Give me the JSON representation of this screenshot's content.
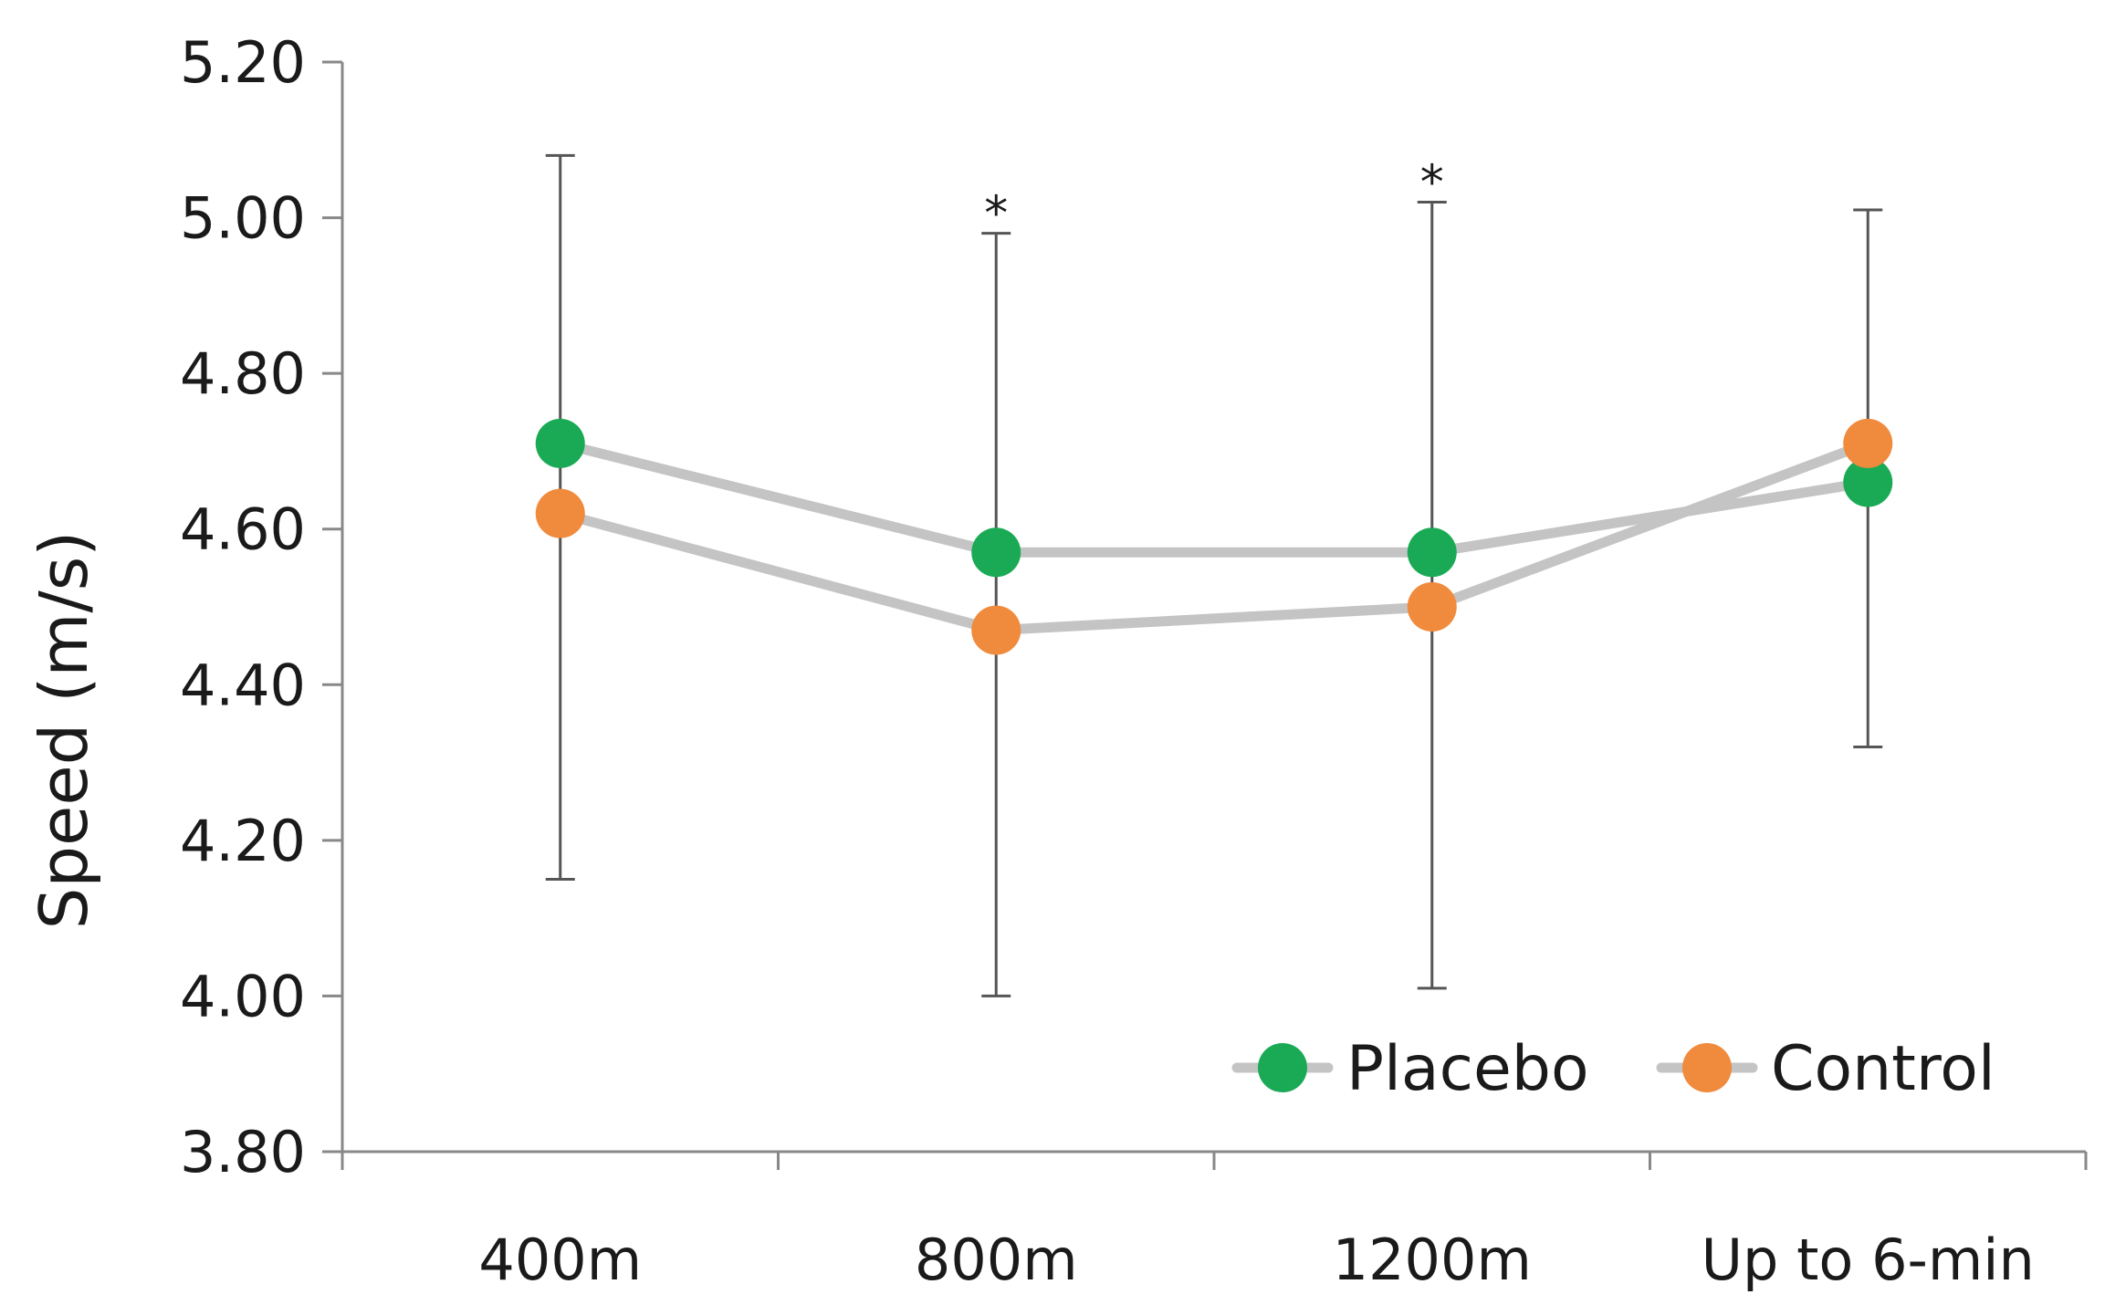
{
  "chart_data": {
    "type": "line",
    "title": "",
    "xlabel": "",
    "ylabel": "Speed (m/s)",
    "categories": [
      "400m",
      "800m",
      "1200m",
      "Up to 6-min"
    ],
    "y_ticks": [
      "3.80",
      "4.00",
      "4.20",
      "4.40",
      "4.60",
      "4.80",
      "5.00",
      "5.20"
    ],
    "ylim": [
      3.8,
      5.2
    ],
    "grid": false,
    "legend_position": "bottom-right",
    "series": [
      {
        "name": "Placebo",
        "color": "#1aaa55",
        "values": [
          4.71,
          4.57,
          4.57,
          4.66
        ]
      },
      {
        "name": "Control",
        "color": "#f08a3c",
        "values": [
          4.62,
          4.47,
          4.5,
          4.71
        ]
      }
    ],
    "error_bars": [
      {
        "category": "400m",
        "low": 4.15,
        "high": 5.08
      },
      {
        "category": "800m",
        "low": 4.0,
        "high": 4.98
      },
      {
        "category": "1200m",
        "low": 4.01,
        "high": 5.02
      },
      {
        "category": "Up to 6-min",
        "low": 4.32,
        "high": 5.01
      }
    ],
    "annotations": [
      {
        "text": "*",
        "category": "800m",
        "y": 5.02
      },
      {
        "text": "*",
        "category": "1200m",
        "y": 5.06
      }
    ],
    "line_color": "#c4c4c4",
    "error_bar_color": "#555555",
    "axis_color": "#888888"
  }
}
